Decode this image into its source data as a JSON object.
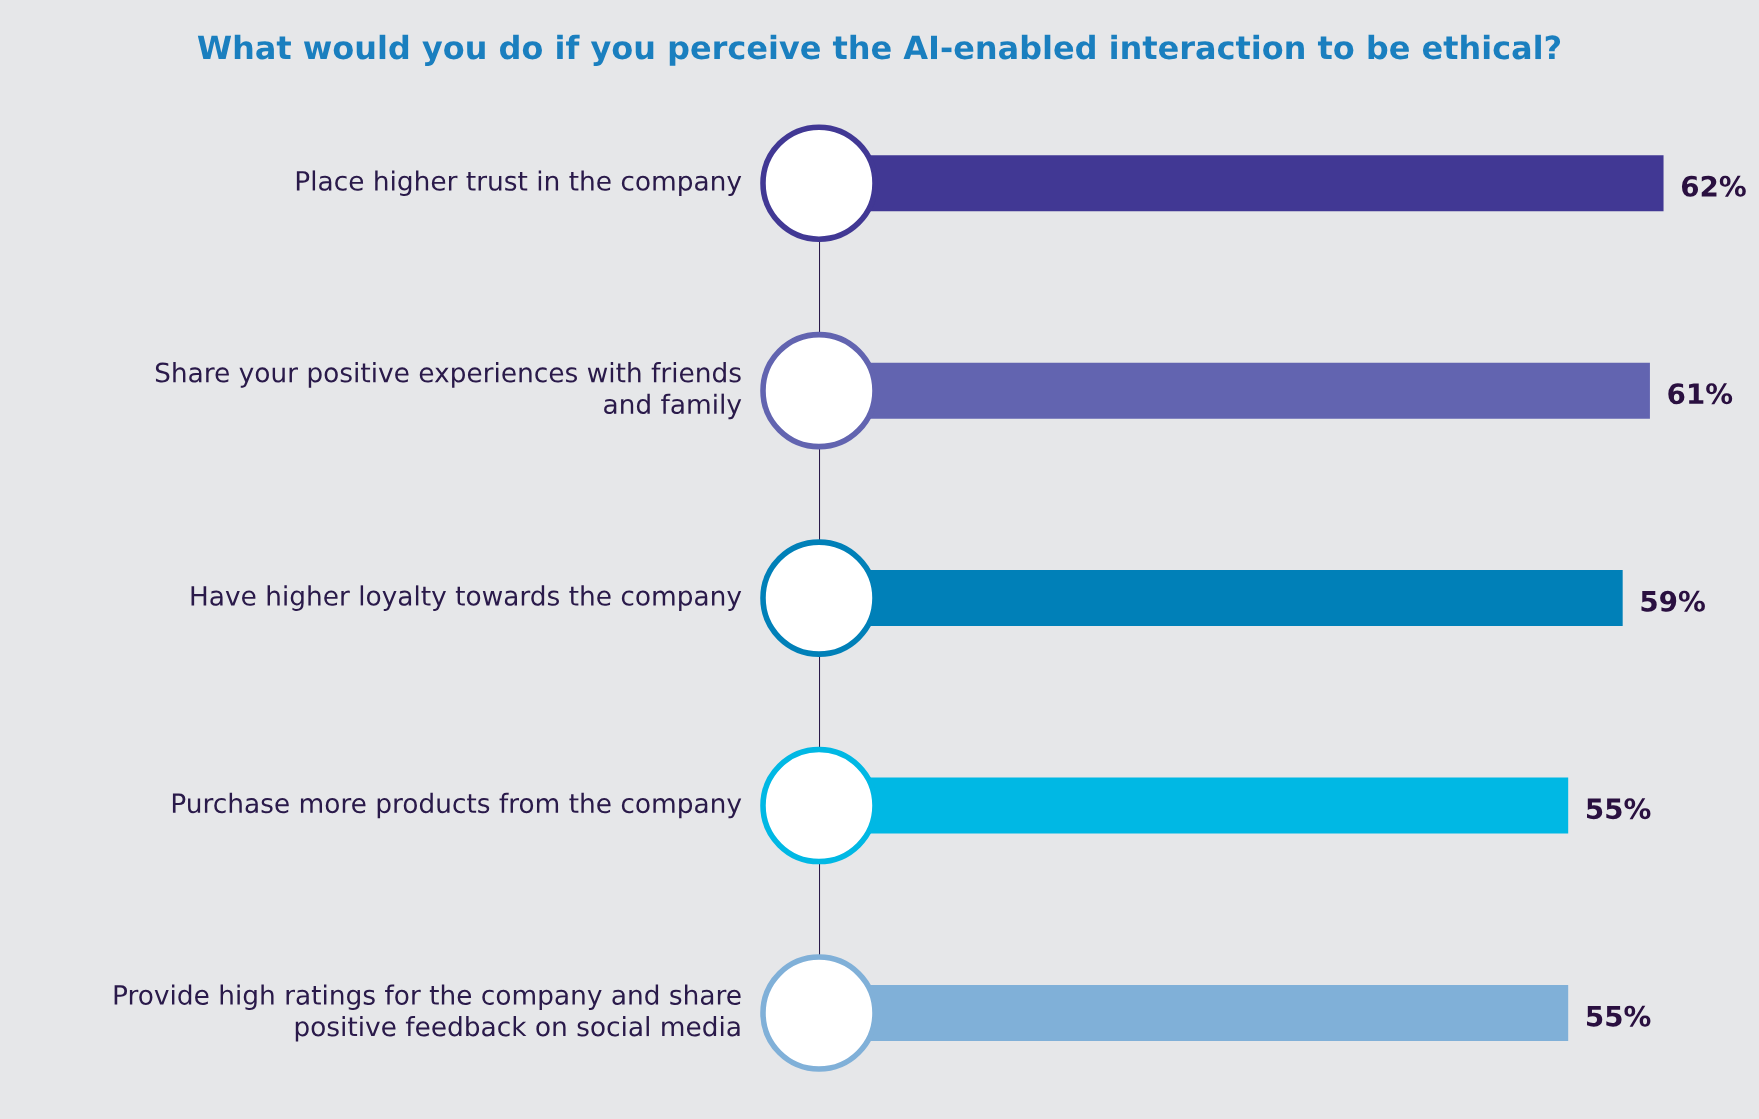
{
  "chart_data": {
    "type": "bar",
    "orientation": "horizontal",
    "title": "What would you do if you perceive the AI-enabled interaction to be ethical?",
    "categories": [
      "Place higher trust in the company",
      "Share your positive experiences with friends\nand family",
      "Have higher loyalty towards the company",
      "Purchase more products from the company",
      "Provide high ratings for the company and share\npositive feedback on social media"
    ],
    "values": [
      62,
      61,
      59,
      55,
      55
    ],
    "colors": [
      "#413894",
      "#6264b0",
      "#0080b8",
      "#00b8e4",
      "#80b0d8"
    ],
    "value_labels": [
      "62%",
      "61%",
      "59%",
      "55%",
      "55%"
    ],
    "legend": false
  }
}
